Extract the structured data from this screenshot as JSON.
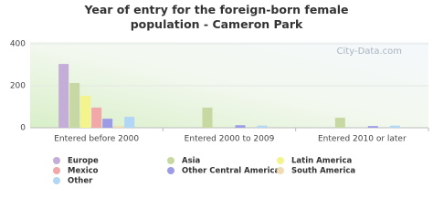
{
  "chart_data": {
    "type": "bar",
    "title": "Year of entry for the foreign-born female population - Cameron Park",
    "watermark": "City-Data.com",
    "categories": [
      "Entered before 2000",
      "Entered 2000 to 2009",
      "Entered 2010 or later"
    ],
    "series": [
      {
        "name": "Europe",
        "color": "#c4aed8",
        "values": [
          304,
          0,
          0
        ]
      },
      {
        "name": "Asia",
        "color": "#c8d8a2",
        "values": [
          213,
          96,
          48
        ]
      },
      {
        "name": "Latin America",
        "color": "#f4f48c",
        "values": [
          152,
          0,
          0
        ]
      },
      {
        "name": "Mexico",
        "color": "#f2a8a8",
        "values": [
          96,
          0,
          0
        ]
      },
      {
        "name": "Other Central America",
        "color": "#9c9ce6",
        "values": [
          43,
          12,
          8
        ]
      },
      {
        "name": "South America",
        "color": "#f0dcb2",
        "values": [
          8,
          0,
          0
        ]
      },
      {
        "name": "Other",
        "color": "#b2d6f6",
        "values": [
          52,
          10,
          10
        ]
      }
    ],
    "ylim": [
      0,
      400
    ],
    "yticks": [
      0,
      200,
      400
    ],
    "grid": true
  }
}
